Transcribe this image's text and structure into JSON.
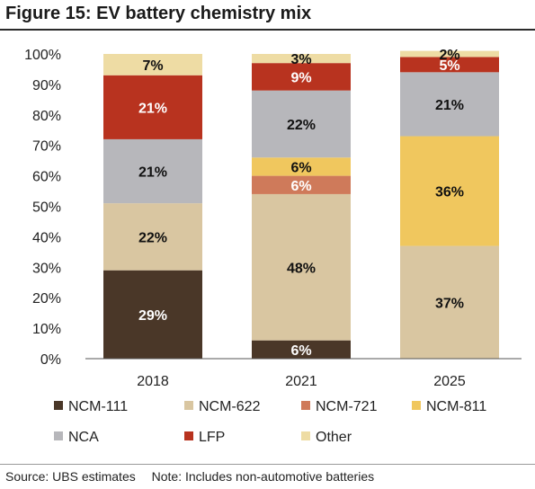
{
  "figure": {
    "title": "Figure 15: EV battery chemistry mix",
    "source": "Source:  UBS estimates",
    "note": "Note: Includes non-automotive batteries"
  },
  "chart_data": {
    "type": "bar",
    "stacked": true,
    "title": "Figure 15: EV battery chemistry mix",
    "categories": [
      "2018",
      "2021",
      "2025"
    ],
    "ylim": [
      0,
      100
    ],
    "y_ticks": [
      "0%",
      "10%",
      "20%",
      "30%",
      "40%",
      "50%",
      "60%",
      "70%",
      "80%",
      "90%",
      "100%"
    ],
    "legend_position": "bottom",
    "series": [
      {
        "name": "NCM-111",
        "color": "#4a3728",
        "values": [
          29,
          6,
          0
        ],
        "labels": [
          "29%",
          "6%",
          ""
        ]
      },
      {
        "name": "NCM-622",
        "color": "#d9c6a1",
        "values": [
          22,
          48,
          37
        ],
        "labels": [
          "22%",
          "48%",
          "37%"
        ]
      },
      {
        "name": "NCM-721",
        "color": "#cf7a5a",
        "values": [
          0,
          6,
          0
        ],
        "labels": [
          "",
          "6%",
          ""
        ]
      },
      {
        "name": "NCM-811",
        "color": "#f0c75e",
        "values": [
          0,
          6,
          36
        ],
        "labels": [
          "",
          "6%",
          "36%"
        ]
      },
      {
        "name": "NCA",
        "color": "#b7b7bb",
        "values": [
          21,
          22,
          21
        ],
        "labels": [
          "21%",
          "22%",
          "21%"
        ]
      },
      {
        "name": "LFP",
        "color": "#b8331f",
        "values": [
          21,
          9,
          5
        ],
        "labels": [
          "21%",
          "9%",
          "5%"
        ]
      },
      {
        "name": "Other",
        "color": "#eedca4",
        "values": [
          7,
          3,
          2
        ],
        "labels": [
          "7%",
          "3%",
          "2%"
        ]
      }
    ],
    "label_colors": {
      "NCM-111": "#ffffff",
      "NCM-622": "#111111",
      "NCM-721": "#ffffff",
      "NCM-811": "#111111",
      "NCA": "#111111",
      "LFP": "#ffffff",
      "Other": "#111111"
    }
  }
}
